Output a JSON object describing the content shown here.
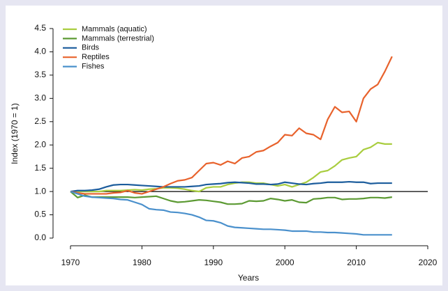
{
  "chart_data": {
    "type": "line",
    "x_label": "Years",
    "y_label": "Index (1970 = 1)",
    "x": [
      1970,
      1971,
      1972,
      1973,
      1974,
      1975,
      1976,
      1977,
      1978,
      1979,
      1980,
      1981,
      1982,
      1983,
      1984,
      1985,
      1986,
      1987,
      1988,
      1989,
      1990,
      1991,
      1992,
      1993,
      1994,
      1995,
      1996,
      1997,
      1998,
      1999,
      2000,
      2001,
      2002,
      2003,
      2004,
      2005,
      2006,
      2007,
      2008,
      2009,
      2010,
      2011,
      2012,
      2013,
      2014,
      2015
    ],
    "series": [
      {
        "name": "Mammals (aquatic)",
        "color": "#a9cd3f",
        "values": [
          1,
          1,
          1,
          1,
          1,
          1.02,
          1.02,
          1.02,
          1.03,
          1.04,
          1.03,
          1.05,
          1.06,
          1.08,
          1.08,
          1.07,
          1.05,
          1.02,
          1.0,
          1.08,
          1.1,
          1.1,
          1.15,
          1.18,
          1.2,
          1.2,
          1.18,
          1.18,
          1.15,
          1.12,
          1.15,
          1.1,
          1.15,
          1.2,
          1.3,
          1.42,
          1.45,
          1.55,
          1.68,
          1.72,
          1.75,
          1.9,
          1.95,
          2.05,
          2.02,
          2.02
        ]
      },
      {
        "name": "Mammals (terrestrial)",
        "color": "#5c9a33",
        "values": [
          1,
          0.87,
          0.92,
          0.88,
          0.88,
          0.88,
          0.88,
          0.88,
          0.88,
          0.87,
          0.88,
          0.89,
          0.9,
          0.85,
          0.8,
          0.77,
          0.78,
          0.8,
          0.82,
          0.81,
          0.79,
          0.77,
          0.73,
          0.73,
          0.74,
          0.8,
          0.79,
          0.8,
          0.85,
          0.83,
          0.8,
          0.82,
          0.77,
          0.76,
          0.84,
          0.85,
          0.87,
          0.87,
          0.83,
          0.84,
          0.84,
          0.85,
          0.87,
          0.87,
          0.86,
          0.88
        ]
      },
      {
        "name": "Birds",
        "color": "#1b5c9c",
        "values": [
          1,
          1.02,
          1.02,
          1.03,
          1.05,
          1.1,
          1.14,
          1.15,
          1.15,
          1.14,
          1.13,
          1.12,
          1.11,
          1.1,
          1.1,
          1.1,
          1.1,
          1.11,
          1.12,
          1.15,
          1.16,
          1.17,
          1.19,
          1.2,
          1.19,
          1.18,
          1.16,
          1.16,
          1.15,
          1.16,
          1.2,
          1.18,
          1.16,
          1.15,
          1.17,
          1.18,
          1.2,
          1.2,
          1.2,
          1.21,
          1.2,
          1.2,
          1.17,
          1.18,
          1.18,
          1.18
        ]
      },
      {
        "name": "Reptiles",
        "color": "#e8622c",
        "values": [
          1,
          0.97,
          0.95,
          0.95,
          0.95,
          0.95,
          0.97,
          0.98,
          1.02,
          0.97,
          0.95,
          1.0,
          1.05,
          1.1,
          1.17,
          1.23,
          1.25,
          1.3,
          1.45,
          1.6,
          1.62,
          1.57,
          1.65,
          1.6,
          1.72,
          1.75,
          1.85,
          1.88,
          1.97,
          2.05,
          2.22,
          2.2,
          2.36,
          2.25,
          2.22,
          2.12,
          2.55,
          2.82,
          2.7,
          2.72,
          2.5,
          3.0,
          3.2,
          3.3,
          3.58,
          3.9
        ]
      },
      {
        "name": "Fishes",
        "color": "#4a90cc",
        "values": [
          1,
          0.95,
          0.9,
          0.88,
          0.87,
          0.86,
          0.85,
          0.83,
          0.82,
          0.77,
          0.72,
          0.63,
          0.61,
          0.6,
          0.56,
          0.55,
          0.53,
          0.5,
          0.45,
          0.38,
          0.37,
          0.33,
          0.26,
          0.23,
          0.22,
          0.21,
          0.2,
          0.19,
          0.19,
          0.18,
          0.17,
          0.15,
          0.15,
          0.15,
          0.13,
          0.13,
          0.12,
          0.12,
          0.11,
          0.1,
          0.09,
          0.07,
          0.07,
          0.07,
          0.07,
          0.07
        ]
      }
    ],
    "xlim": [
      1970,
      2020
    ],
    "xticks": [
      1970,
      1980,
      1990,
      2000,
      2010,
      2020
    ],
    "ylim": [
      0,
      4.5
    ],
    "yticks": [
      {
        "value": 0,
        "label": "0.0"
      },
      {
        "value": 0.5,
        "label": "0.5"
      },
      {
        "value": 1,
        "label": "1.0"
      },
      {
        "value": 1.5,
        "label": "1.5"
      },
      {
        "value": 2,
        "label": "2.0"
      },
      {
        "value": 2.5,
        "label": "2.5"
      },
      {
        "value": 3,
        "label": "3.0"
      },
      {
        "value": 3.5,
        "label": "3.5"
      },
      {
        "value": 4,
        "label": "4.0"
      },
      {
        "value": 4.5,
        "label": "4.5"
      }
    ],
    "reference_line": 1,
    "legend": "top-left"
  }
}
